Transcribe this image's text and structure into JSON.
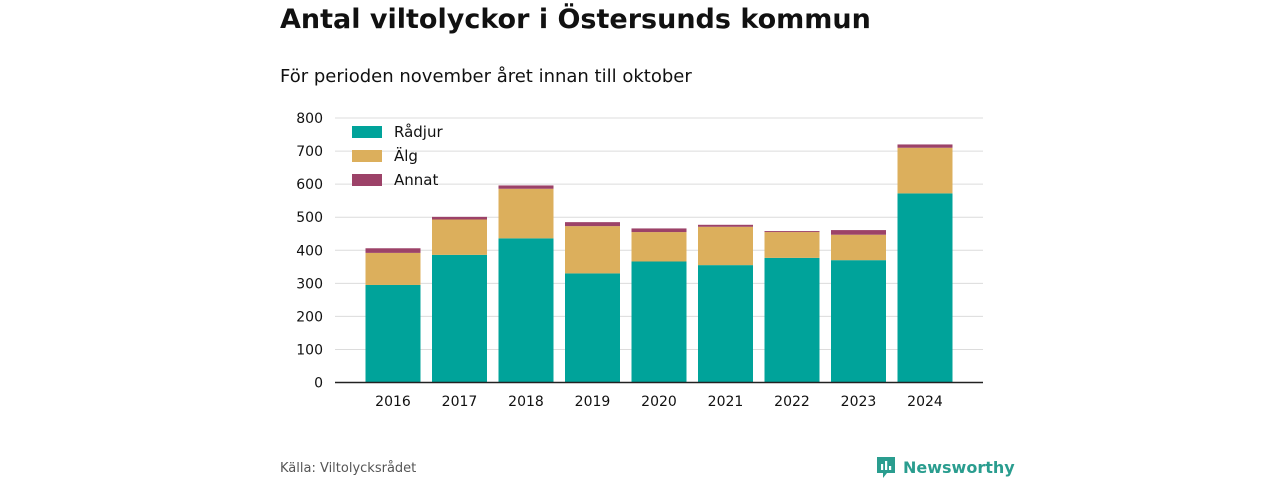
{
  "title": "Antal viltolyckor i Östersunds kommun",
  "subtitle": "För perioden november året innan till oktober",
  "source": "Källa: Viltolycksrådet",
  "brand": "Newsworthy",
  "colors": {
    "radjur": "#00a39a",
    "alg": "#dcaf5c",
    "annat": "#9c4268",
    "brand": "#2a9d8f"
  },
  "chart_data": {
    "type": "bar",
    "stacked": true,
    "categories": [
      "2016",
      "2017",
      "2018",
      "2019",
      "2020",
      "2021",
      "2022",
      "2023",
      "2024"
    ],
    "series": [
      {
        "name": "Rådjur",
        "color": "#00a39a",
        "values": [
          295,
          386,
          436,
          330,
          366,
          355,
          377,
          370,
          572
        ]
      },
      {
        "name": "Älg",
        "color": "#dcaf5c",
        "values": [
          97,
          107,
          150,
          143,
          89,
          116,
          78,
          77,
          138
        ]
      },
      {
        "name": "Annat",
        "color": "#9c4268",
        "values": [
          14,
          8,
          10,
          12,
          11,
          6,
          3,
          14,
          10
        ]
      }
    ],
    "ylim": [
      0,
      800
    ],
    "yticks": [
      0,
      100,
      200,
      300,
      400,
      500,
      600,
      700,
      800
    ],
    "grid": true,
    "legend": "top-left"
  }
}
